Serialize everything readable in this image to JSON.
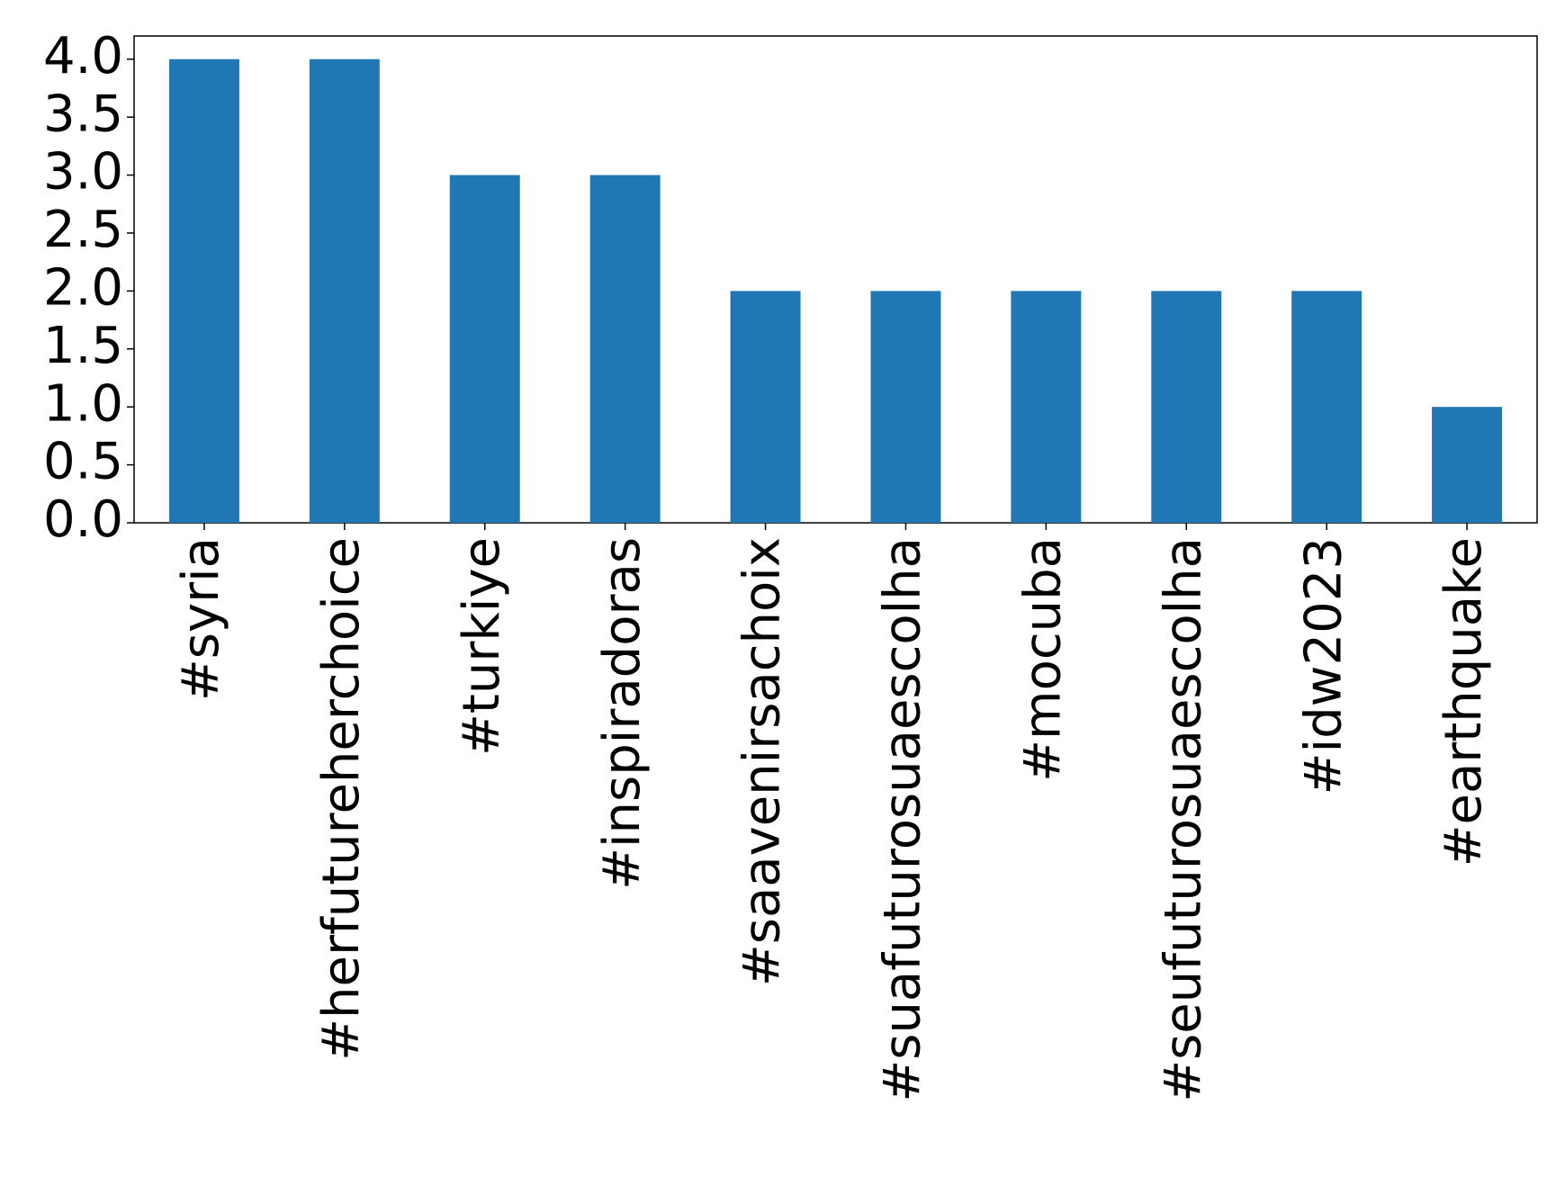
{
  "chart_data": {
    "type": "bar",
    "categories": [
      "#syria",
      "#herfutureherchoice",
      "#turkiye",
      "#inspiradoras",
      "#saavenirsachoix",
      "#suafuturosuaescolha",
      "#mocuba",
      "#seufuturosuaescolha",
      "#idw2023",
      "#earthquake"
    ],
    "values": [
      4,
      4,
      3,
      3,
      2,
      2,
      2,
      2,
      2,
      1
    ],
    "color": "#1f77b4",
    "ylim": [
      0,
      4.2
    ],
    "yticks": [
      {
        "value": 0,
        "label": "0.0"
      },
      {
        "value": 0.5,
        "label": "0.5"
      },
      {
        "value": 1,
        "label": "1.0"
      },
      {
        "value": 1.5,
        "label": "1.5"
      },
      {
        "value": 2,
        "label": "2.0"
      },
      {
        "value": 2.5,
        "label": "2.5"
      },
      {
        "value": 3,
        "label": "3.0"
      },
      {
        "value": 3.5,
        "label": "3.5"
      },
      {
        "value": 4,
        "label": "4.0"
      }
    ],
    "grid": false
  }
}
